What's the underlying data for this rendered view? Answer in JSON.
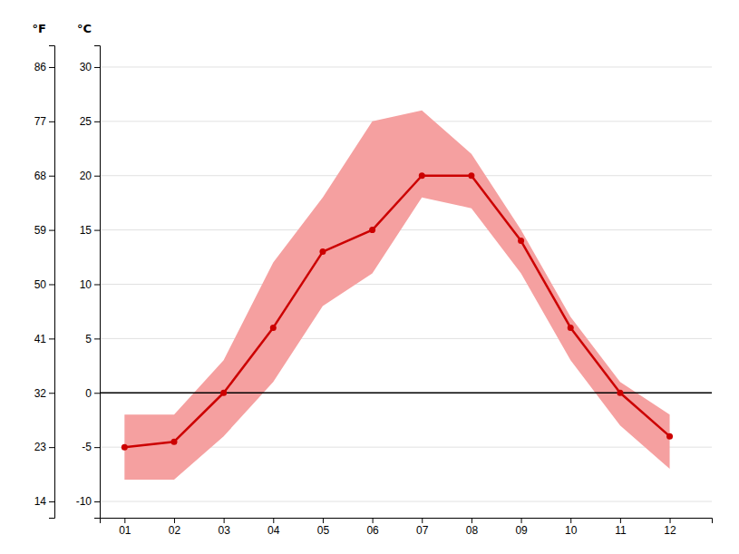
{
  "chart_data": {
    "type": "line",
    "ylabel": "°C",
    "y2label": "°F",
    "x": [
      1,
      2,
      3,
      4,
      5,
      6,
      7,
      8,
      9,
      10,
      11,
      12
    ],
    "xlim": [
      0.5,
      12.85
    ],
    "xticks": [
      {
        "value": 1,
        "label": "01"
      },
      {
        "value": 2,
        "label": "02"
      },
      {
        "value": 3,
        "label": "03"
      },
      {
        "value": 4,
        "label": "04"
      },
      {
        "value": 5,
        "label": "05"
      },
      {
        "value": 6,
        "label": "06"
      },
      {
        "value": 7,
        "label": "07"
      },
      {
        "value": 8,
        "label": "08"
      },
      {
        "value": 9,
        "label": "09"
      },
      {
        "value": 10,
        "label": "10"
      },
      {
        "value": 11,
        "label": "11"
      },
      {
        "value": 12,
        "label": "12"
      }
    ],
    "ylim": [
      -11.5,
      32
    ],
    "yticks": [
      -10,
      -5,
      0,
      5,
      10,
      15,
      20,
      25,
      30
    ],
    "y2lim": [
      11.3,
      89.6
    ],
    "y2ticks": [
      14,
      23,
      32,
      41,
      50,
      59,
      68,
      77,
      86
    ],
    "grid": true,
    "series": [
      {
        "type": "band",
        "color": "#f5a0a0",
        "low": [
          -8,
          -8,
          -4,
          1,
          8,
          11,
          18,
          17,
          11,
          3,
          -3,
          -7
        ],
        "high": [
          -2,
          -2,
          3,
          12,
          18,
          25,
          26,
          22,
          15,
          7,
          1,
          -2
        ]
      },
      {
        "type": "line",
        "color": "#cc0000",
        "marker": "circle",
        "values": [
          -5,
          -4.5,
          0,
          6,
          13,
          15,
          20,
          20,
          14,
          6,
          0,
          -4
        ]
      }
    ],
    "reference_lines": [
      {
        "y": 0,
        "color": "#000000"
      }
    ]
  }
}
